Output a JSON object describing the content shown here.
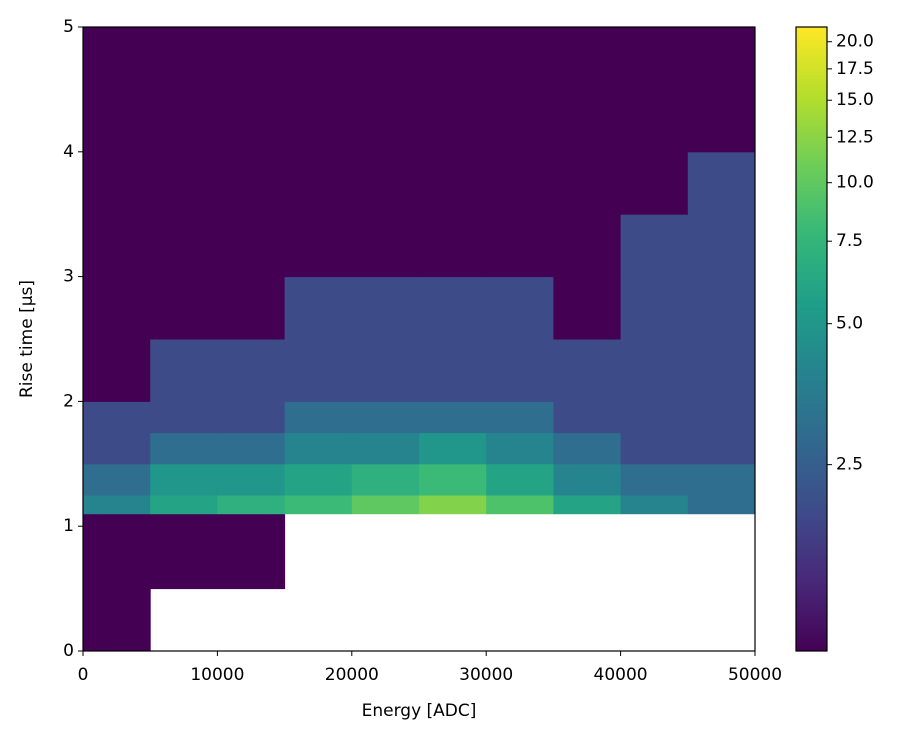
{
  "chart_data": {
    "type": "hist2d",
    "xlabel": "Energy [ADC]",
    "ylabel": "Rise time [μs]",
    "xbins": [
      0,
      5000,
      10000,
      15000,
      20000,
      25000,
      30000,
      35000,
      40000,
      45000,
      50000
    ],
    "ybins": [
      0,
      0.5,
      1.1,
      1.25,
      1.5,
      1.75,
      2,
      2.5,
      3,
      3.5,
      4,
      4.5,
      5
    ],
    "counts": [
      [
        1,
        0,
        0,
        0,
        0,
        0,
        0,
        0,
        0,
        0
      ],
      [
        1,
        1,
        1,
        0,
        0,
        0,
        0,
        0,
        0,
        0
      ],
      [
        4,
        6,
        7,
        8,
        10,
        12,
        9,
        6,
        4,
        3
      ],
      [
        3,
        5,
        5,
        6,
        7,
        8,
        6,
        4,
        3,
        3
      ],
      [
        2,
        3,
        3,
        4,
        4,
        5,
        4,
        3,
        2,
        2
      ],
      [
        2,
        2,
        2,
        3,
        3,
        3,
        3,
        2,
        2,
        2
      ],
      [
        1,
        2,
        2,
        2,
        2,
        2,
        2,
        2,
        2,
        2
      ],
      [
        1,
        1,
        1,
        2,
        2,
        2,
        2,
        1,
        2,
        2
      ],
      [
        1,
        1,
        1,
        1,
        1,
        1,
        1,
        1,
        2,
        2
      ],
      [
        1,
        1,
        1,
        1,
        1,
        1,
        1,
        1,
        1,
        2
      ],
      [
        1,
        1,
        1,
        1,
        1,
        1,
        1,
        1,
        1,
        1
      ],
      [
        1,
        1,
        1,
        1,
        1,
        1,
        1,
        1,
        1,
        1
      ]
    ],
    "xlim": [
      0,
      50000
    ],
    "xticks": [
      0,
      10000,
      20000,
      30000,
      40000,
      50000
    ],
    "ylim": [
      0,
      5
    ],
    "yticks": [
      0,
      1,
      2,
      3,
      4,
      5
    ],
    "cmap": "viridis",
    "color_scale": "log",
    "clim": [
      1,
      21.5
    ],
    "cticks": [
      2.5,
      {
        "value": 5,
        "label": "5.0"
      },
      7.5,
      {
        "value": 10,
        "label": "10.0"
      },
      12.5,
      {
        "value": 15,
        "label": "15.0"
      },
      17.5,
      {
        "value": 20,
        "label": "20.0"
      }
    ]
  }
}
